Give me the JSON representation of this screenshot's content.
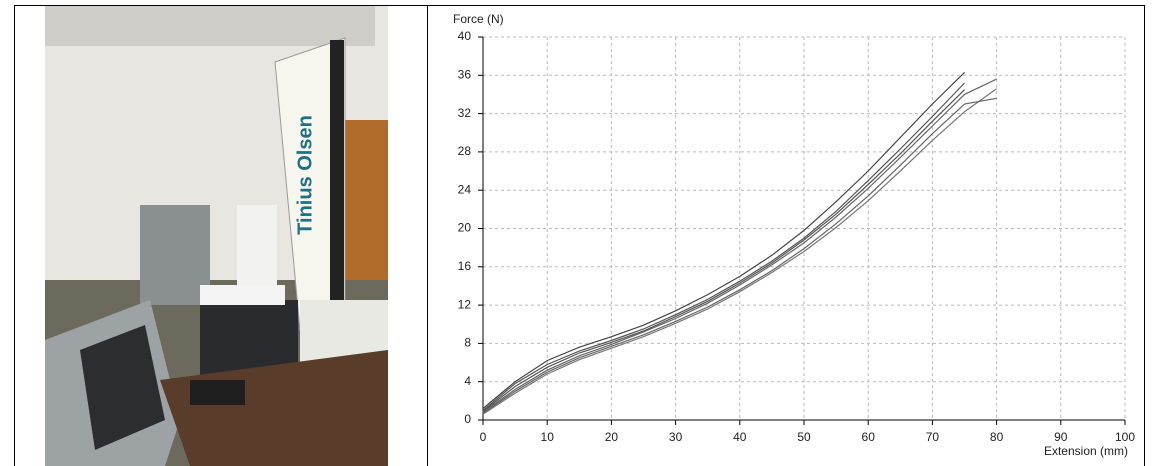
{
  "photo": {
    "brand": "Tinius Olsen"
  },
  "chart_data": {
    "type": "line",
    "ylabel": "Force (N)",
    "xlabel": "Extension (mm)",
    "x": [
      0,
      5,
      10,
      15,
      20,
      25,
      30,
      35,
      40,
      45,
      50,
      55,
      60,
      65,
      70,
      75,
      80
    ],
    "series": [
      {
        "color": "#555555",
        "values": [
          1,
          3.8,
          5.8,
          7.2,
          8.3,
          9.5,
          11,
          12.6,
          14.5,
          16.6,
          19,
          21.8,
          25,
          28.3,
          31.7,
          35.2,
          null
        ]
      },
      {
        "color": "#666666",
        "values": [
          0.8,
          3.2,
          5.2,
          6.7,
          7.9,
          9.2,
          10.6,
          12.2,
          14.1,
          16.2,
          18.5,
          21.2,
          24.2,
          27.4,
          30.7,
          34,
          35.6
        ]
      },
      {
        "color": "#444444",
        "values": [
          1.2,
          4,
          6.2,
          7.6,
          8.7,
          9.9,
          11.4,
          13.1,
          15,
          17.2,
          19.8,
          22.8,
          26,
          29.5,
          33,
          36.3,
          null
        ]
      },
      {
        "color": "#777777",
        "values": [
          0.6,
          2.8,
          4.8,
          6.3,
          7.5,
          8.7,
          10.1,
          11.6,
          13.4,
          15.4,
          17.6,
          20.1,
          22.9,
          26,
          29.2,
          32.2,
          34.6
        ]
      },
      {
        "color": "#555555",
        "values": [
          0.9,
          3.5,
          5.5,
          7,
          8.1,
          9.3,
          10.8,
          12.4,
          14.3,
          16.4,
          18.8,
          21.5,
          24.6,
          27.8,
          31.2,
          34.5,
          null
        ]
      },
      {
        "color": "#666666",
        "values": [
          0.7,
          3,
          5,
          6.5,
          7.7,
          8.9,
          10.3,
          11.8,
          13.6,
          15.6,
          17.9,
          20.5,
          23.4,
          26.6,
          29.9,
          33,
          33.6
        ]
      }
    ],
    "xlim": [
      0,
      100
    ],
    "xticks": [
      0,
      10,
      20,
      30,
      40,
      50,
      60,
      70,
      80,
      90,
      100
    ],
    "ylim": [
      0,
      40
    ],
    "yticks": [
      0,
      4,
      8,
      12,
      16,
      20,
      24,
      28,
      32,
      36,
      40
    ],
    "grid": true
  }
}
